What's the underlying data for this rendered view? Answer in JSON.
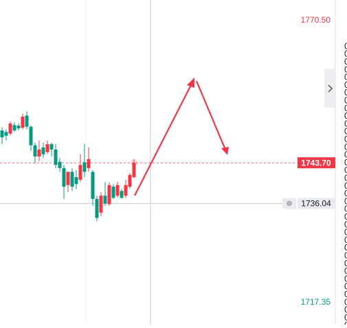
{
  "chart_data": {
    "type": "candlestick",
    "ylim": [
      1713.21,
      1774.38
    ],
    "up_color": "#f23645",
    "down_color": "#089981",
    "candles": {
      "open": [
        1749.8,
        1749.5,
        1749.2,
        1750.8,
        1750.7,
        1750.3,
        1752.6,
        1750.5,
        1747.0,
        1744.9,
        1746.6,
        1745.7,
        1747.2,
        1746.2,
        1743.9,
        1742.7,
        1739.5,
        1742.0,
        1741.0,
        1740.5,
        1743.8,
        1742.7,
        1742.0,
        1736.9,
        1734.3,
        1737.5,
        1735.9,
        1739.2,
        1737.5,
        1738.4,
        1737.5,
        1739.2,
        1741.0
      ],
      "high": [
        1750.4,
        1750.0,
        1751.5,
        1751.3,
        1751.1,
        1753.0,
        1753.4,
        1750.7,
        1747.5,
        1747.9,
        1747.5,
        1747.9,
        1747.5,
        1747.2,
        1744.6,
        1743.3,
        1742.0,
        1742.7,
        1742.3,
        1745.3,
        1747.2,
        1746.6,
        1742.3,
        1737.5,
        1738.2,
        1740.1,
        1740.0,
        1739.7,
        1740.1,
        1738.8,
        1740.5,
        1741.8,
        1744.4
      ],
      "low": [
        1747.2,
        1747.9,
        1748.9,
        1749.5,
        1749.8,
        1750.0,
        1750.0,
        1745.9,
        1743.6,
        1744.0,
        1744.6,
        1745.3,
        1744.9,
        1742.7,
        1742.0,
        1736.9,
        1738.2,
        1738.4,
        1738.8,
        1740.1,
        1741.0,
        1742.0,
        1735.6,
        1732.7,
        1733.6,
        1735.6,
        1735.6,
        1736.9,
        1737.1,
        1736.9,
        1737.1,
        1738.8,
        1740.8
      ],
      "close": [
        1748.5,
        1748.8,
        1751.1,
        1749.8,
        1750.2,
        1752.4,
        1750.5,
        1747.0,
        1744.9,
        1746.2,
        1745.3,
        1747.2,
        1746.2,
        1743.3,
        1742.7,
        1739.2,
        1742.0,
        1739.2,
        1739.7,
        1743.3,
        1742.0,
        1744.4,
        1736.9,
        1733.3,
        1737.5,
        1736.0,
        1739.5,
        1737.1,
        1739.5,
        1737.1,
        1739.5,
        1741.4,
        1743.7
      ]
    },
    "high_label": {
      "value": 1770.5,
      "label": "1770.50"
    },
    "low_label": 1717.35,
    "last_price": {
      "value": 1743.7,
      "label": "1743.70"
    },
    "crosshair_price": 1736.04,
    "side_items": [
      "0",
      "0",
      "0",
      "0",
      "0",
      "0",
      "0",
      "0",
      "0",
      "0",
      "0",
      "0",
      "0",
      "0",
      "0",
      "0",
      "0",
      "0",
      "0",
      "0",
      "0",
      "0",
      "0",
      "0",
      "0",
      "0",
      "0",
      "0",
      "0",
      "0",
      "0",
      "0",
      "0",
      "0",
      "0",
      "0",
      "0"
    ]
  }
}
